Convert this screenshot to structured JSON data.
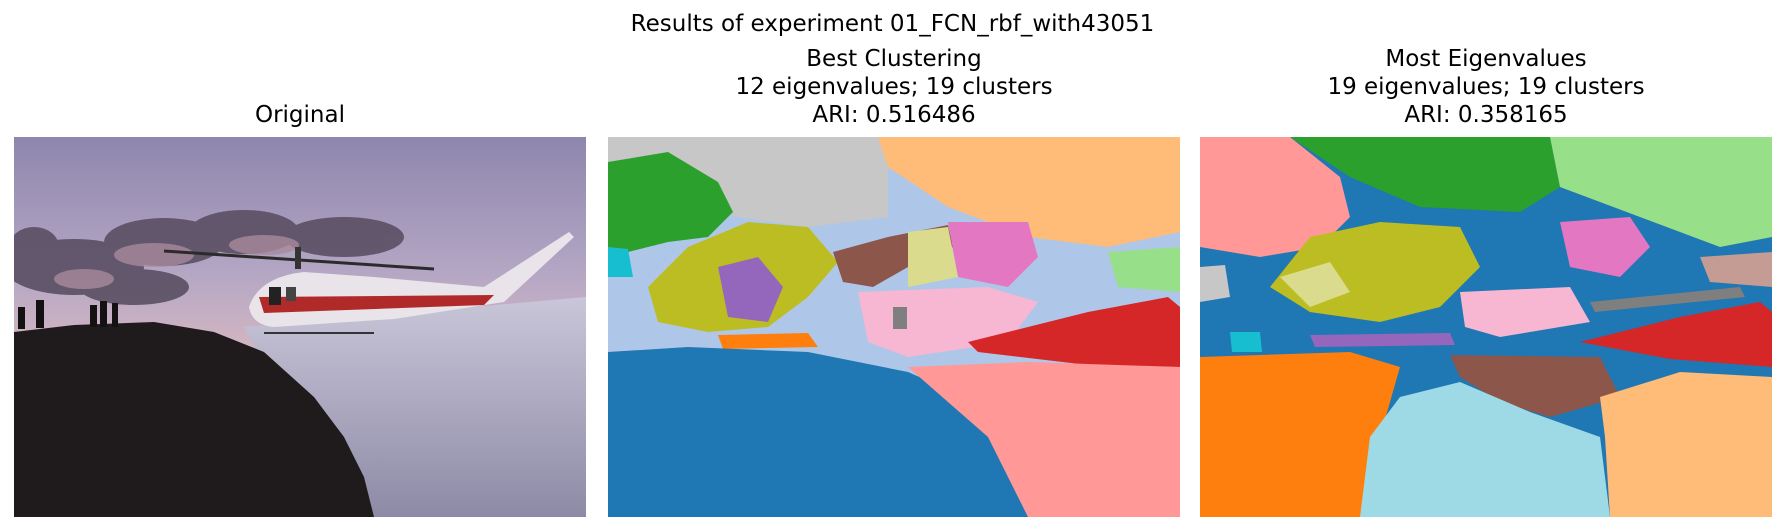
{
  "figure": {
    "title": "Results of experiment 01_FCN_rbf_with43051"
  },
  "panels": [
    {
      "title_lines": [
        "Original"
      ]
    },
    {
      "title_lines": [
        "Best Clustering",
        "12 eigenvalues; 19 clusters",
        "ARI: 0.516486"
      ]
    },
    {
      "title_lines": [
        "Most Eigenvalues",
        "19 eigenvalues; 19 clusters",
        "ARI: 0.358165"
      ]
    }
  ],
  "colors": {
    "tab_blue": "#1f77b4",
    "tab_light_blue": "#aec7e8",
    "tab_orange": "#ff7f0e",
    "tab_light_orange": "#ffbb78",
    "tab_green": "#2ca02c",
    "tab_light_green": "#98df8a",
    "tab_red": "#d62728",
    "tab_light_red": "#ff9896",
    "tab_purple": "#9467bd",
    "tab_brown": "#8c564b",
    "tab_pink": "#e377c2",
    "tab_light_pink": "#f7b6d2",
    "tab_grey": "#7f7f7f",
    "tab_light_grey": "#c7c7c7",
    "tab_olive": "#bcbd22",
    "tab_light_olive": "#dbdb8d",
    "tab_cyan": "#17becf",
    "tab_light_cyan": "#9edae5"
  }
}
